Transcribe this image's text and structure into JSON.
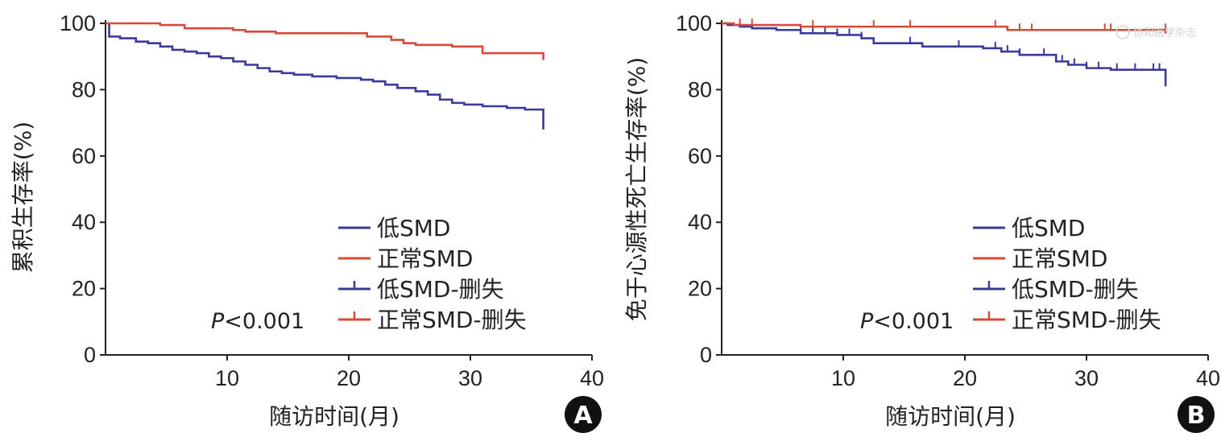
{
  "chart_data": [
    {
      "type": "line",
      "panel": "A",
      "title": "",
      "xlabel": "随访时间(月)",
      "ylabel": "累积生存率(%)",
      "xlim": [
        0,
        40
      ],
      "ylim": [
        0,
        100
      ],
      "xticks": [
        10,
        20,
        30,
        40
      ],
      "yticks": [
        0,
        20,
        40,
        60,
        80,
        100
      ],
      "pvalue": {
        "italic": "P",
        "rest": "<0.001"
      },
      "legend": [
        {
          "label": "低SMD",
          "color": "#3a3a9a",
          "censor": false
        },
        {
          "label": "正常SMD",
          "color": "#d64a3a",
          "censor": false
        },
        {
          "label": "低SMD-删失",
          "color": "#3a3a9a",
          "censor": true
        },
        {
          "label": "正常SMD-删失",
          "color": "#d64a3a",
          "censor": true
        }
      ],
      "series": [
        {
          "name": "低SMD",
          "color": "#3a3a9a",
          "x": [
            0,
            0.3,
            1.2,
            2.5,
            3.5,
            4.5,
            5.5,
            6.5,
            7.5,
            8.5,
            9.5,
            10.5,
            11.5,
            12.5,
            13.5,
            14.5,
            15.5,
            17,
            19,
            21,
            22,
            23,
            24,
            25.5,
            26.5,
            27.5,
            28.5,
            29.5,
            31,
            33,
            34.5,
            36
          ],
          "y": [
            100,
            96,
            95.5,
            94.5,
            94,
            93,
            92,
            91.5,
            91,
            90,
            89.5,
            88.5,
            87.5,
            86.5,
            85.5,
            85,
            84.5,
            84,
            83.5,
            83,
            82.5,
            81.5,
            80.5,
            79.5,
            78.5,
            77,
            76,
            75.5,
            75,
            74.5,
            74,
            73.5
          ],
          "end": 68
        },
        {
          "name": "正常SMD",
          "color": "#d64a3a",
          "x": [
            0,
            4.5,
            6.5,
            10.5,
            11.5,
            14,
            21.5,
            23.5,
            24.5,
            25.5,
            28.5,
            31,
            36
          ],
          "y": [
            100,
            99.5,
            98.5,
            98,
            97.5,
            97,
            96,
            95,
            94,
            93.5,
            93,
            91,
            91
          ],
          "end": 89
        }
      ]
    },
    {
      "type": "line",
      "panel": "B",
      "title": "",
      "xlabel": "随访时间(月)",
      "ylabel": "免于心源性死亡生存率(%)",
      "xlim": [
        0,
        40
      ],
      "ylim": [
        0,
        100
      ],
      "xticks": [
        10,
        20,
        30,
        40
      ],
      "yticks": [
        0,
        20,
        40,
        60,
        80,
        100
      ],
      "pvalue": {
        "italic": "P",
        "rest": "<0.001"
      },
      "legend": [
        {
          "label": "低SMD",
          "color": "#3a3a9a",
          "censor": false
        },
        {
          "label": "正常SMD",
          "color": "#d64a3a",
          "censor": false
        },
        {
          "label": "低SMD-删失",
          "color": "#3a3a9a",
          "censor": true
        },
        {
          "label": "正常SMD-删失",
          "color": "#d64a3a",
          "censor": true
        }
      ],
      "series": [
        {
          "name": "低SMD",
          "color": "#3a3a9a",
          "x": [
            0,
            0.5,
            1.5,
            2.5,
            4.5,
            6.5,
            9.5,
            11.5,
            12.5,
            16.5,
            21.5,
            23,
            24.5,
            27.5,
            28.5,
            30,
            32,
            36.5
          ],
          "y": [
            100,
            99.5,
            99,
            98.5,
            98,
            97,
            96.5,
            95.5,
            94,
            93,
            92.5,
            91.5,
            90.5,
            88.5,
            87.5,
            86.5,
            86,
            85
          ],
          "end": 81,
          "censors": [
            6.5,
            7.5,
            8.5,
            9.5,
            10.5,
            11.5,
            15.5,
            19.5,
            22.5,
            23.5,
            24.5,
            26.5,
            28,
            29,
            30,
            31,
            32.5,
            34,
            35.5,
            36
          ]
        },
        {
          "name": "正常SMD",
          "color": "#d64a3a",
          "x": [
            0,
            1,
            4.5,
            6.5,
            9.5,
            23.5,
            36.5
          ],
          "y": [
            100,
            99.5,
            99.5,
            99,
            99,
            98,
            98
          ],
          "end": 97,
          "censors": [
            1.5,
            2.5,
            7.5,
            12.5,
            15.5,
            22.5,
            24.5,
            25.5,
            31.5,
            32,
            36.5
          ]
        }
      ]
    }
  ],
  "badges": [
    "A",
    "B"
  ],
  "watermark": "协和医学杂志"
}
